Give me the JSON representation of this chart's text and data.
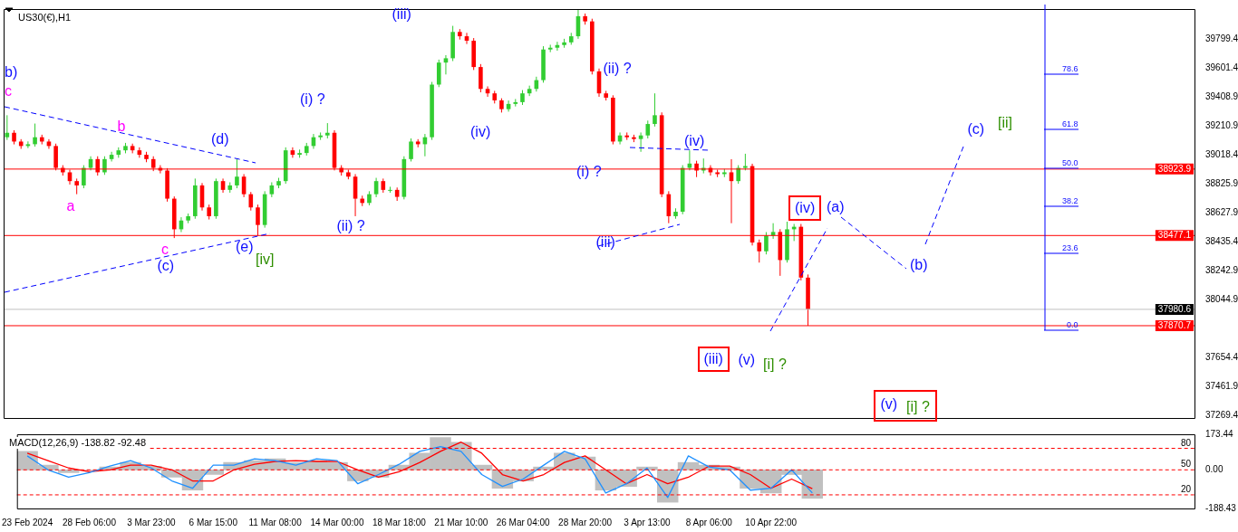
{
  "chart_data": [
    {
      "type": "candlestick",
      "title": "US30(€),H1",
      "categories": [
        null,
        null,
        null,
        null,
        null,
        null,
        null,
        null,
        null,
        null,
        null,
        null,
        null,
        null,
        null,
        null,
        null,
        null,
        null,
        null,
        null,
        null,
        null,
        null,
        null,
        null,
        null,
        null,
        null,
        null,
        null,
        null,
        null,
        null,
        null,
        null,
        null,
        null,
        null,
        null,
        null,
        null,
        null,
        null,
        null,
        null,
        null,
        null,
        null,
        null,
        null,
        null,
        null,
        null,
        null,
        null,
        null,
        null,
        null,
        null,
        null,
        null,
        null,
        null,
        null,
        null,
        null,
        null,
        null,
        null,
        null,
        null,
        null,
        null,
        null,
        null,
        null,
        null,
        null,
        null,
        null,
        null,
        null,
        null,
        null,
        null,
        null,
        null,
        null,
        null,
        null,
        null,
        null,
        null,
        null,
        null,
        null,
        null,
        null,
        null,
        null,
        null,
        null,
        null,
        null,
        null,
        null,
        null,
        null,
        null,
        null,
        null,
        null,
        null,
        null,
        null,
        null,
        null,
        null,
        null,
        null,
        null,
        null,
        null,
        null,
        null,
        null,
        null,
        null,
        null,
        null,
        null,
        null,
        null,
        null,
        null,
        null,
        null,
        null,
        null,
        null,
        null,
        null,
        null,
        null,
        null,
        null,
        null,
        null,
        null,
        null,
        null,
        null,
        null,
        null,
        null,
        null,
        null,
        null,
        null,
        null,
        null,
        null,
        null,
        null,
        null,
        null,
        null,
        null,
        null,
        null
      ],
      "ohlc": [
        [
          39138,
          39286,
          39120,
          39168
        ],
        [
          39168,
          39185,
          39090,
          39109
        ],
        [
          39109,
          39125,
          39060,
          39079
        ],
        [
          39079,
          39110,
          39065,
          39091
        ],
        [
          39091,
          39230,
          39075,
          39138
        ],
        [
          39138,
          39155,
          39090,
          39109
        ],
        [
          39109,
          39125,
          39060,
          39079
        ],
        [
          39079,
          39095,
          38915,
          38932
        ],
        [
          38932,
          38950,
          38880,
          38902
        ],
        [
          38902,
          38920,
          38820,
          38843
        ],
        [
          38843,
          38860,
          38755,
          38814
        ],
        [
          38814,
          38950,
          38795,
          38932
        ],
        [
          38932,
          39010,
          38915,
          38991
        ],
        [
          38991,
          39010,
          38880,
          38902
        ],
        [
          38902,
          39010,
          38885,
          38991
        ],
        [
          38991,
          39040,
          38975,
          39020
        ],
        [
          39020,
          39070,
          39000,
          39050
        ],
        [
          39050,
          39100,
          39030,
          39079
        ],
        [
          39079,
          39095,
          39030,
          39050
        ],
        [
          39050,
          39070,
          39000,
          39020
        ],
        [
          39020,
          39040,
          38970,
          38991
        ],
        [
          38991,
          39010,
          38910,
          38932
        ],
        [
          38932,
          38950,
          38895,
          38914
        ],
        [
          38914,
          38930,
          38705,
          38725
        ],
        [
          38725,
          38740,
          38460,
          38519
        ],
        [
          38519,
          38600,
          38500,
          38578
        ],
        [
          38578,
          38625,
          38560,
          38607
        ],
        [
          38607,
          38860,
          38590,
          38814
        ],
        [
          38814,
          38830,
          38645,
          38666
        ],
        [
          38666,
          38685,
          38585,
          38607
        ],
        [
          38607,
          38860,
          38590,
          38843
        ],
        [
          38843,
          38860,
          38765,
          38784
        ],
        [
          38784,
          38835,
          38765,
          38814
        ],
        [
          38814,
          38990,
          38795,
          38873
        ],
        [
          38873,
          38890,
          38735,
          38755
        ],
        [
          38755,
          38770,
          38645,
          38666
        ],
        [
          38666,
          38685,
          38477,
          38548
        ],
        [
          38548,
          38775,
          38530,
          38755
        ],
        [
          38755,
          38835,
          38735,
          38814
        ],
        [
          38814,
          38865,
          38795,
          38843
        ],
        [
          38843,
          39070,
          38825,
          39050
        ],
        [
          39050,
          39070,
          39000,
          39020
        ],
        [
          39020,
          39055,
          39000,
          39032
        ],
        [
          39032,
          39100,
          39015,
          39079
        ],
        [
          39079,
          39160,
          39060,
          39138
        ],
        [
          39138,
          39170,
          39120,
          39150
        ],
        [
          39150,
          39233,
          39130,
          39168
        ],
        [
          39168,
          39185,
          38915,
          38932
        ],
        [
          38932,
          38950,
          38880,
          38902
        ],
        [
          38902,
          38920,
          38855,
          38873
        ],
        [
          38873,
          38890,
          38607,
          38725
        ],
        [
          38725,
          38745,
          38675,
          38696
        ],
        [
          38696,
          38775,
          38680,
          38755
        ],
        [
          38755,
          38865,
          38735,
          38843
        ],
        [
          38843,
          38860,
          38765,
          38784
        ],
        [
          38784,
          38805,
          38765,
          38784
        ],
        [
          38784,
          38800,
          38710,
          38737
        ],
        [
          38737,
          39010,
          38720,
          38991
        ],
        [
          38991,
          39130,
          38975,
          39109
        ],
        [
          39109,
          39125,
          39070,
          39091
        ],
        [
          39091,
          39160,
          39010,
          39138
        ],
        [
          39138,
          39510,
          39120,
          39492
        ],
        [
          39492,
          39660,
          39475,
          39640
        ],
        [
          39640,
          39690,
          39560,
          39669
        ],
        [
          39669,
          39887,
          39650,
          39846
        ],
        [
          39846,
          39865,
          39795,
          39817
        ],
        [
          39817,
          39840,
          39765,
          39787
        ],
        [
          39787,
          39805,
          39590,
          39610
        ],
        [
          39610,
          39630,
          39440,
          39463
        ],
        [
          39463,
          39480,
          39410,
          39433
        ],
        [
          39433,
          39450,
          39365,
          39386
        ],
        [
          39386,
          39400,
          39304,
          39327
        ],
        [
          39327,
          39385,
          39310,
          39362
        ],
        [
          39362,
          39395,
          39345,
          39374
        ],
        [
          39374,
          39455,
          39355,
          39433
        ],
        [
          39433,
          39485,
          39415,
          39463
        ],
        [
          39463,
          39545,
          39445,
          39522
        ],
        [
          39522,
          39750,
          39505,
          39728
        ],
        [
          39728,
          39760,
          39710,
          39740
        ],
        [
          39740,
          39780,
          39720,
          39758
        ],
        [
          39758,
          39800,
          39740,
          39776
        ],
        [
          39776,
          39840,
          39760,
          39817
        ],
        [
          39817,
          39994,
          39800,
          39952
        ],
        [
          39952,
          39970,
          39895,
          39917
        ],
        [
          39917,
          39935,
          39560,
          39581
        ],
        [
          39581,
          39600,
          39410,
          39433
        ],
        [
          39433,
          39450,
          39385,
          39404
        ],
        [
          39404,
          39420,
          39090,
          39109
        ],
        [
          39109,
          39170,
          39090,
          39150
        ],
        [
          39150,
          39170,
          39120,
          39138
        ],
        [
          39138,
          39155,
          39105,
          39126
        ],
        [
          39126,
          39170,
          39040,
          39150
        ],
        [
          39150,
          39250,
          39130,
          39227
        ],
        [
          39227,
          39433,
          39210,
          39286
        ],
        [
          39286,
          39305,
          38735,
          38755
        ],
        [
          38755,
          38775,
          38560,
          38607
        ],
        [
          38607,
          38660,
          38590,
          38637
        ],
        [
          38637,
          38950,
          38620,
          38932
        ],
        [
          38932,
          39050,
          38915,
          38961
        ],
        [
          38961,
          38980,
          38870,
          38914
        ],
        [
          38914,
          38995,
          38895,
          38932
        ],
        [
          38932,
          38950,
          38880,
          38902
        ],
        [
          38902,
          38920,
          38870,
          38890
        ],
        [
          38890,
          38925,
          38870,
          38902
        ],
        [
          38902,
          38990,
          38560,
          38843
        ],
        [
          38843,
          38950,
          38825,
          38932
        ],
        [
          38932,
          39027,
          38915,
          38944
        ],
        [
          38944,
          38960,
          38410,
          38430
        ],
        [
          38430,
          38450,
          38295,
          38371
        ],
        [
          38371,
          38500,
          38350,
          38477
        ],
        [
          38477,
          38560,
          38455,
          38501
        ],
        [
          38501,
          38520,
          38206,
          38312
        ],
        [
          38312,
          38570,
          38295,
          38519
        ],
        [
          38519,
          38555,
          38440,
          38536
        ],
        [
          38536,
          38555,
          38175,
          38194
        ],
        [
          38194,
          38215,
          37870.7,
          37980.6
        ],
        null,
        null,
        null,
        null,
        null,
        null,
        null,
        null,
        null,
        null,
        null,
        null,
        null,
        null,
        null,
        null,
        null,
        null,
        null,
        null,
        null,
        null,
        null,
        null,
        null,
        null,
        null,
        null,
        null,
        null,
        null,
        null,
        null,
        null,
        null,
        null,
        null,
        null,
        null,
        null,
        null,
        null,
        null,
        null,
        null,
        null,
        null,
        null,
        null,
        null,
        null,
        null,
        null,
        null,
        null
      ],
      "ylim": [
        37250,
        40000
      ],
      "yticks": [
        39799.4,
        39601.4,
        39408.9,
        39210.9,
        39018.4,
        38825.9,
        38627.9,
        38435.4,
        38242.9,
        38044.9,
        37654.4,
        37461.9,
        37269.4
      ],
      "tick_labels": "y",
      "ref_lines": [
        {
          "axis": "y",
          "value": 38923.9,
          "label": "38923.9",
          "color": "#ff0000"
        },
        {
          "axis": "y",
          "value": 38477.1,
          "label": "38477.1",
          "color": "#ff0000"
        },
        {
          "axis": "y",
          "value": 37870.7,
          "label": "37870.7",
          "color": "#ff0000"
        },
        {
          "axis": "y",
          "value": 37980.6,
          "label": "37980.6",
          "color": "#c0c0c0"
        }
      ],
      "annotations": [
        "b)",
        "c",
        "b",
        "a",
        "(d)",
        "c",
        "(c)",
        "(e)",
        "[iv]",
        "(i) ?",
        "(ii) ?",
        "(iii)",
        "(iv)",
        "(ii) ?",
        "(i) ?",
        "(iii)",
        "(iv)",
        "(iii)",
        "(v)",
        "[i] ?",
        "(iv)",
        "(a)",
        "(b)",
        "(c)",
        "[ii]",
        "(v)",
        "[i] ?",
        "78.6",
        "61.8",
        "50.0",
        "38.2",
        "23.6",
        "0.0"
      ]
    },
    {
      "type": "bar",
      "title": "MACD(12,26,9) -138.82 -92.48",
      "categories": [
        "23 Feb 2024",
        null,
        null,
        "28 Feb 06:00",
        null,
        null,
        "3 Mar 23:00",
        null,
        null,
        "6 Mar 15:00",
        null,
        null,
        "11 Mar 08:00",
        null,
        null,
        "14 Mar 00:00",
        null,
        null,
        "18 Mar 18:00",
        null,
        null,
        "21 Mar 10:00",
        null,
        null,
        "26 Mar 04:00",
        null,
        null,
        "28 Mar 20:00",
        null,
        null,
        "3 Apr 13:00",
        null,
        null,
        "8 Apr 06:00",
        null,
        null,
        "10 Apr 22:00",
        null,
        null,
        null,
        null,
        null,
        null,
        null,
        null,
        null,
        null,
        null,
        null,
        null,
        null,
        null,
        null,
        null,
        null,
        null,
        null
      ],
      "series": [
        {
          "type": "bar",
          "color": "#c0c0c0",
          "values": [
            90,
            23,
            -14,
            0,
            14,
            36,
            18,
            -36,
            -99,
            -23,
            36,
            45,
            54,
            36,
            45,
            36,
            -54,
            -36,
            23,
            81,
            158,
            135,
            23,
            -90,
            -54,
            14,
            81,
            63,
            -99,
            -81,
            14,
            -158,
            36,
            23,
            14,
            -90,
            -113,
            -23,
            -139,
            null,
            null,
            null,
            null,
            null,
            null,
            null,
            null,
            null,
            null,
            null,
            null,
            null,
            null,
            null,
            null,
            null,
            null
          ]
        },
        {
          "type": "line",
          "color": "#1e90ff",
          "values": [
            68,
            0,
            -36,
            -14,
            18,
            45,
            9,
            -54,
            -90,
            23,
            23,
            54,
            45,
            23,
            54,
            45,
            -68,
            -23,
            27,
            90,
            113,
            90,
            -23,
            -81,
            -45,
            23,
            90,
            54,
            -113,
            -68,
            9,
            -135,
            68,
            14,
            0,
            -99,
            -90,
            0,
            -113,
            null,
            null,
            null,
            null,
            null,
            null,
            null,
            null,
            null,
            null,
            null,
            null,
            null,
            null,
            null,
            null,
            null,
            null
          ]
        },
        {
          "type": "line",
          "color": "#ff0000",
          "values": [
            81,
            45,
            9,
            -9,
            0,
            23,
            23,
            0,
            -54,
            -54,
            0,
            27,
            41,
            45,
            41,
            41,
            0,
            -36,
            -9,
            36,
            90,
            135,
            81,
            -23,
            -54,
            -23,
            36,
            68,
            0,
            -68,
            -23,
            -68,
            -36,
            18,
            18,
            -23,
            -90,
            -45,
            -92,
            null,
            null,
            null,
            null,
            null,
            null,
            null,
            null,
            null,
            null,
            null,
            null,
            null,
            null,
            null,
            null,
            null,
            null
          ]
        }
      ],
      "ylim": [
        -188.43,
        173.44
      ],
      "yticks": [
        173.44,
        {
          "value": 0,
          "label": "0.00"
        },
        -188.43
      ],
      "ref_lines": [
        {
          "axis": "y",
          "value": 105,
          "color": "#ff0000",
          "line_style": "dashed"
        },
        {
          "axis": "y",
          "value": 0,
          "color": "#ff0000",
          "line_style": "dashed"
        },
        {
          "axis": "y",
          "value": -122,
          "color": "#ff0000",
          "line_style": "dashed"
        }
      ],
      "annotations": [
        "80",
        "50",
        "20"
      ],
      "marker": "none"
    }
  ]
}
